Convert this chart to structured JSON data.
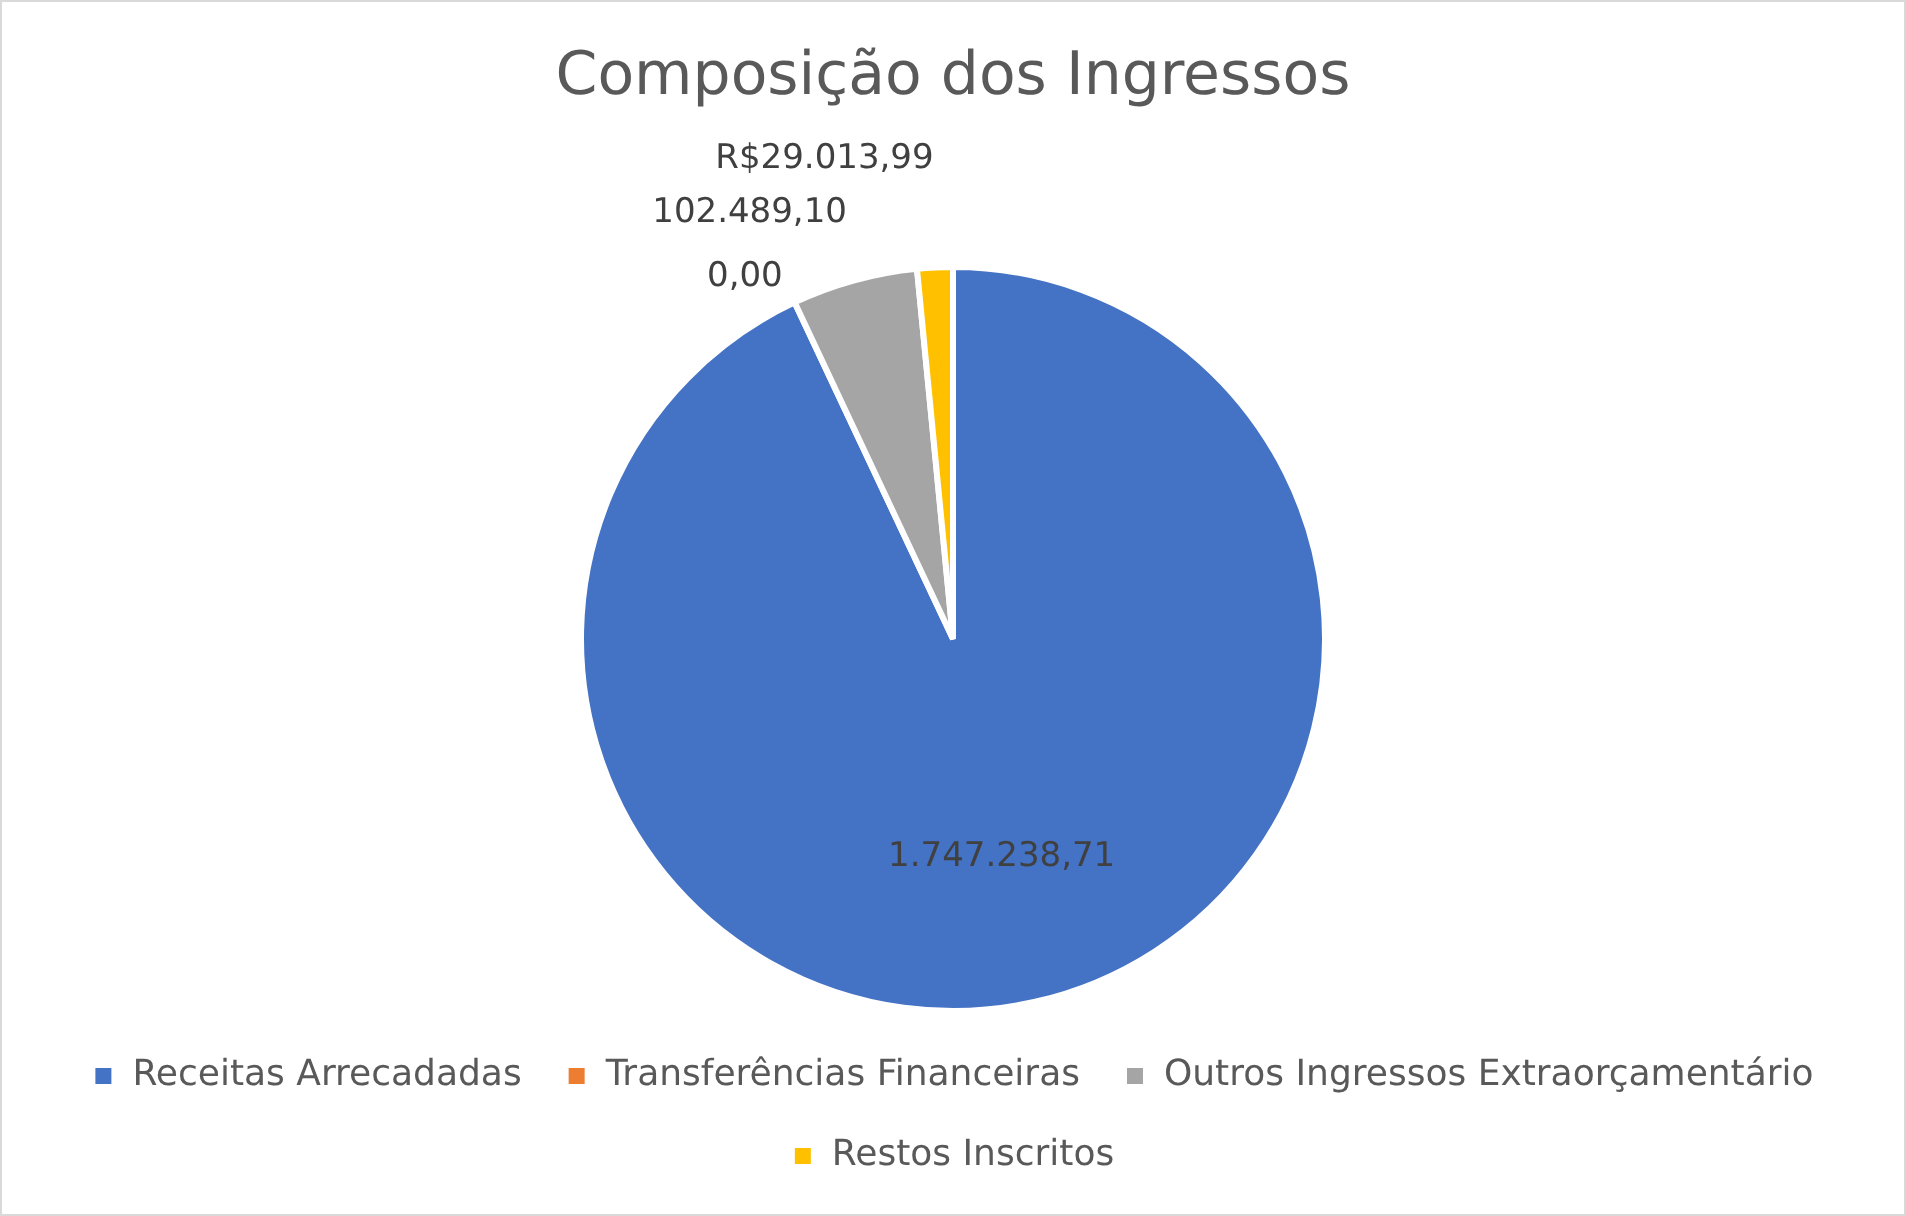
{
  "chart_data": {
    "type": "pie",
    "title": "Composição dos Ingressos",
    "categories": [
      "Receitas Arrecadadas",
      "Transferências Financeiras",
      "Outros Ingressos Extraorçamentário",
      "Restos Inscritos"
    ],
    "values": [
      1747238.71,
      0,
      102489.1,
      29013.99
    ],
    "value_labels": [
      "1.747.238,71",
      "0,00",
      "102.489,10",
      "R$29.013,99"
    ],
    "colors": [
      "#4472c4",
      "#ed7d31",
      "#a5a5a5",
      "#ffc000"
    ],
    "legend": "bottom"
  }
}
